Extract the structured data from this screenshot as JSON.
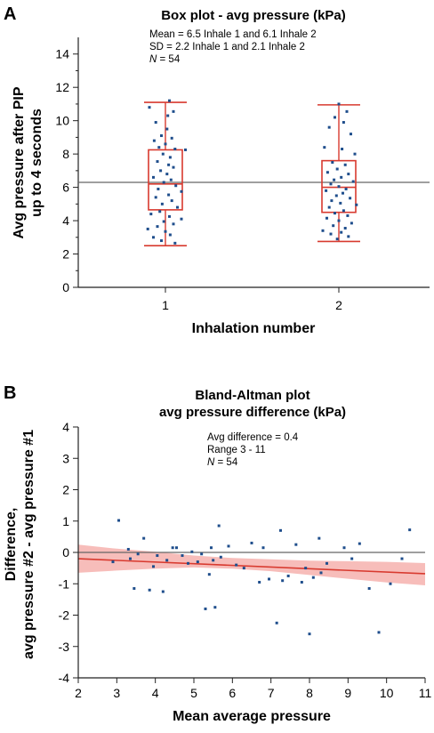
{
  "chart_data": [
    {
      "panel": "A",
      "type": "box",
      "title": "Box plot - avg pressure (kPa)",
      "xlabel": "Inhalation number",
      "ylabel_lines": [
        "Avg pressure after PIP",
        "up to 4 seconds"
      ],
      "ylim": [
        0,
        15
      ],
      "yticks": [
        0,
        2,
        4,
        6,
        8,
        10,
        12,
        14
      ],
      "categories": [
        "1",
        "2"
      ],
      "annotations": [
        "Mean = 6.5 Inhale 1 and 6.1 Inhale 2",
        "SD = 2.2 Inhale 1 and 2.1 Inhale 2",
        "N = 54"
      ],
      "reference_line": 6.3,
      "box_color": "#d83a2f",
      "point_color": "#1f4e8c",
      "boxes": [
        {
          "category": "1",
          "min": 2.5,
          "q1": 4.65,
          "median": 6.2,
          "q3": 8.25,
          "max": 11.1,
          "points": [
            {
              "dx": 0.05,
              "y": 11.2
            },
            {
              "dx": -0.2,
              "y": 10.8
            },
            {
              "dx": 0.1,
              "y": 10.55
            },
            {
              "dx": 0.03,
              "y": 10.3
            },
            {
              "dx": -0.12,
              "y": 9.9
            },
            {
              "dx": 0.02,
              "y": 9.5
            },
            {
              "dx": -0.05,
              "y": 9.1
            },
            {
              "dx": 0.08,
              "y": 8.95
            },
            {
              "dx": -0.14,
              "y": 8.8
            },
            {
              "dx": 0.0,
              "y": 8.6
            },
            {
              "dx": -0.08,
              "y": 8.4
            },
            {
              "dx": 0.12,
              "y": 8.3
            },
            {
              "dx": 0.25,
              "y": 8.25
            },
            {
              "dx": -0.03,
              "y": 8.0
            },
            {
              "dx": 0.06,
              "y": 7.8
            },
            {
              "dx": -0.1,
              "y": 7.55
            },
            {
              "dx": 0.04,
              "y": 7.35
            },
            {
              "dx": 0.1,
              "y": 7.2
            },
            {
              "dx": -0.06,
              "y": 7.0
            },
            {
              "dx": 0.02,
              "y": 6.8
            },
            {
              "dx": -0.15,
              "y": 6.6
            },
            {
              "dx": 0.07,
              "y": 6.45
            },
            {
              "dx": -0.02,
              "y": 6.3
            },
            {
              "dx": 0.13,
              "y": 6.1
            },
            {
              "dx": -0.09,
              "y": 5.9
            },
            {
              "dx": 0.2,
              "y": 5.75
            },
            {
              "dx": 0.04,
              "y": 5.55
            },
            {
              "dx": -0.12,
              "y": 5.4
            },
            {
              "dx": 0.08,
              "y": 5.2
            },
            {
              "dx": -0.04,
              "y": 5.0
            },
            {
              "dx": 0.15,
              "y": 4.8
            },
            {
              "dx": -0.07,
              "y": 4.55
            },
            {
              "dx": -0.18,
              "y": 4.4
            },
            {
              "dx": 0.05,
              "y": 4.25
            },
            {
              "dx": 0.2,
              "y": 4.1
            },
            {
              "dx": -0.02,
              "y": 3.95
            },
            {
              "dx": 0.1,
              "y": 3.8
            },
            {
              "dx": -0.1,
              "y": 3.65
            },
            {
              "dx": -0.22,
              "y": 3.5
            },
            {
              "dx": 0.0,
              "y": 3.35
            },
            {
              "dx": 0.06,
              "y": 3.15
            },
            {
              "dx": -0.15,
              "y": 3.0
            },
            {
              "dx": -0.05,
              "y": 2.8
            },
            {
              "dx": 0.12,
              "y": 2.65
            }
          ]
        },
        {
          "category": "2",
          "min": 2.75,
          "q1": 4.5,
          "median": 6.0,
          "q3": 7.6,
          "max": 10.95,
          "points": [
            {
              "dx": 0.0,
              "y": 11.0
            },
            {
              "dx": 0.1,
              "y": 10.55
            },
            {
              "dx": -0.05,
              "y": 10.2
            },
            {
              "dx": 0.06,
              "y": 9.9
            },
            {
              "dx": -0.12,
              "y": 9.6
            },
            {
              "dx": 0.15,
              "y": 9.2
            },
            {
              "dx": -0.18,
              "y": 8.4
            },
            {
              "dx": 0.04,
              "y": 8.3
            },
            {
              "dx": 0.2,
              "y": 8.0
            },
            {
              "dx": -0.08,
              "y": 7.5
            },
            {
              "dx": 0.08,
              "y": 7.35
            },
            {
              "dx": -0.02,
              "y": 7.1
            },
            {
              "dx": -0.14,
              "y": 6.9
            },
            {
              "dx": 0.12,
              "y": 6.8
            },
            {
              "dx": 0.03,
              "y": 6.6
            },
            {
              "dx": -0.06,
              "y": 6.45
            },
            {
              "dx": 0.18,
              "y": 6.35
            },
            {
              "dx": -0.1,
              "y": 6.2
            },
            {
              "dx": 0.0,
              "y": 6.05
            },
            {
              "dx": 0.09,
              "y": 5.9
            },
            {
              "dx": -0.16,
              "y": 5.8
            },
            {
              "dx": 0.05,
              "y": 5.65
            },
            {
              "dx": -0.03,
              "y": 5.5
            },
            {
              "dx": 0.14,
              "y": 5.35
            },
            {
              "dx": -0.09,
              "y": 5.2
            },
            {
              "dx": 0.02,
              "y": 5.05
            },
            {
              "dx": 0.22,
              "y": 4.95
            },
            {
              "dx": -0.12,
              "y": 4.8
            },
            {
              "dx": 0.06,
              "y": 4.6
            },
            {
              "dx": -0.05,
              "y": 4.45
            },
            {
              "dx": 0.11,
              "y": 4.3
            },
            {
              "dx": -0.15,
              "y": 4.15
            },
            {
              "dx": 0.0,
              "y": 4.0
            },
            {
              "dx": 0.16,
              "y": 3.85
            },
            {
              "dx": -0.07,
              "y": 3.7
            },
            {
              "dx": 0.08,
              "y": 3.55
            },
            {
              "dx": -0.2,
              "y": 3.4
            },
            {
              "dx": 0.03,
              "y": 3.3
            },
            {
              "dx": -0.1,
              "y": 3.2
            },
            {
              "dx": 0.12,
              "y": 3.05
            },
            {
              "dx": -0.02,
              "y": 2.9
            }
          ]
        }
      ]
    },
    {
      "panel": "B",
      "type": "scatter",
      "title_lines": [
        "Bland-Altman plot",
        "avg pressure difference (kPa)"
      ],
      "xlabel": "Mean average pressure",
      "ylabel_lines": [
        "Difference,",
        "avg pressure #2 - avg pressure #1"
      ],
      "xlim": [
        2,
        11
      ],
      "ylim": [
        -4,
        4
      ],
      "xticks": [
        2,
        3,
        4,
        5,
        6,
        7,
        8,
        9,
        10,
        11
      ],
      "yticks": [
        -4,
        -3,
        -2,
        -1,
        0,
        1,
        2,
        3,
        4
      ],
      "annotations": [
        "Avg difference = 0.4",
        "Range 3 - 11",
        "N = 54"
      ],
      "reference_line": 0,
      "regression": {
        "x": [
          2,
          11
        ],
        "y": [
          -0.2,
          -0.68
        ],
        "color": "#d83a2f"
      },
      "confidence_band": {
        "x": [
          2,
          3,
          4,
          5,
          6,
          7,
          8,
          9,
          10,
          11
        ],
        "upper": [
          0.25,
          0.12,
          0.02,
          -0.1,
          -0.18,
          -0.22,
          -0.26,
          -0.28,
          -0.3,
          -0.34
        ],
        "lower": [
          -0.65,
          -0.58,
          -0.52,
          -0.48,
          -0.52,
          -0.6,
          -0.72,
          -0.84,
          -0.96,
          -1.05
        ],
        "color": "#f4a7a3"
      },
      "point_color": "#1f4e8c",
      "points": [
        {
          "x": 2.9,
          "y": -0.3
        },
        {
          "x": 3.05,
          "y": 1.02
        },
        {
          "x": 3.3,
          "y": 0.1
        },
        {
          "x": 3.35,
          "y": -0.2
        },
        {
          "x": 3.45,
          "y": -1.15
        },
        {
          "x": 3.55,
          "y": -0.05
        },
        {
          "x": 3.7,
          "y": 0.45
        },
        {
          "x": 3.85,
          "y": -1.2
        },
        {
          "x": 3.95,
          "y": -0.45
        },
        {
          "x": 4.05,
          "y": -0.1
        },
        {
          "x": 4.2,
          "y": -1.25
        },
        {
          "x": 4.3,
          "y": -0.25
        },
        {
          "x": 4.45,
          "y": 0.15
        },
        {
          "x": 4.55,
          "y": 0.15
        },
        {
          "x": 4.7,
          "y": -0.1
        },
        {
          "x": 4.85,
          "y": -0.35
        },
        {
          "x": 4.95,
          "y": 0.02
        },
        {
          "x": 5.1,
          "y": -0.3
        },
        {
          "x": 5.2,
          "y": -0.05
        },
        {
          "x": 5.3,
          "y": -1.8
        },
        {
          "x": 5.4,
          "y": -0.7
        },
        {
          "x": 5.45,
          "y": 0.15
        },
        {
          "x": 5.5,
          "y": -0.25
        },
        {
          "x": 5.55,
          "y": -1.75
        },
        {
          "x": 5.65,
          "y": 0.85
        },
        {
          "x": 5.7,
          "y": -0.15
        },
        {
          "x": 5.9,
          "y": 0.2
        },
        {
          "x": 6.1,
          "y": -0.4
        },
        {
          "x": 6.3,
          "y": -0.5
        },
        {
          "x": 6.5,
          "y": 0.3
        },
        {
          "x": 6.7,
          "y": -0.95
        },
        {
          "x": 6.8,
          "y": 0.15
        },
        {
          "x": 6.95,
          "y": -0.85
        },
        {
          "x": 7.15,
          "y": -2.25
        },
        {
          "x": 7.25,
          "y": 0.7
        },
        {
          "x": 7.3,
          "y": -0.9
        },
        {
          "x": 7.45,
          "y": -0.75
        },
        {
          "x": 7.65,
          "y": 0.25
        },
        {
          "x": 7.8,
          "y": -0.95
        },
        {
          "x": 7.9,
          "y": -0.5
        },
        {
          "x": 8.0,
          "y": -2.6
        },
        {
          "x": 8.1,
          "y": -0.8
        },
        {
          "x": 8.25,
          "y": 0.45
        },
        {
          "x": 8.3,
          "y": -0.65
        },
        {
          "x": 8.45,
          "y": -0.35
        },
        {
          "x": 8.9,
          "y": 0.15
        },
        {
          "x": 9.1,
          "y": -0.2
        },
        {
          "x": 9.3,
          "y": 0.28
        },
        {
          "x": 9.55,
          "y": -1.15
        },
        {
          "x": 9.8,
          "y": -2.55
        },
        {
          "x": 10.1,
          "y": -1.0
        },
        {
          "x": 10.4,
          "y": -0.2
        },
        {
          "x": 10.6,
          "y": 0.72
        }
      ]
    }
  ]
}
